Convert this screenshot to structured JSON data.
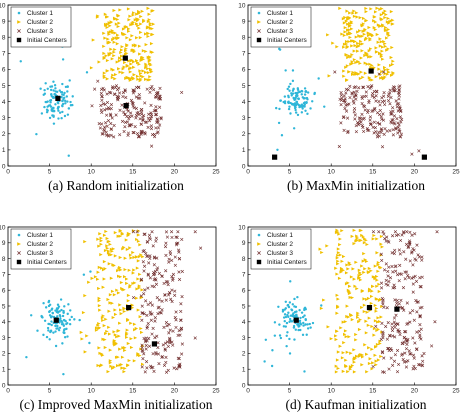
{
  "colors": {
    "cluster1": "#2fb6d8",
    "cluster2": "#f0c000",
    "cluster3": "#6e2a2a",
    "center": "#000000"
  },
  "shared": {
    "xlim": [
      0,
      25
    ],
    "ylim": [
      0,
      10
    ],
    "xticks": [
      "0",
      "5",
      "10",
      "15",
      "20",
      "25"
    ],
    "yticks": [
      "0",
      "1",
      "2",
      "3",
      "4",
      "5",
      "6",
      "7",
      "8",
      "9",
      "10"
    ],
    "legend": [
      "Cluster 1",
      "Cluster 2",
      "Cluster 3",
      "Initial Centers"
    ],
    "legend_position": "top-left",
    "grid": false
  },
  "chart_data": [
    {
      "type": "scatter",
      "caption": "(a) Random initialization",
      "series": [
        {
          "name": "Cluster 1",
          "marker": "dot",
          "center": [
            5.8,
            4.1
          ],
          "spread": [
            1.3,
            0.8
          ],
          "count": 110
        },
        {
          "name": "Cluster 2",
          "marker": "triangle",
          "region": [
            11.5,
            17.5,
            5.3,
            9.8
          ],
          "count": 230
        },
        {
          "name": "Cluster 3",
          "marker": "x",
          "region": [
            11.0,
            18.5,
            1.8,
            5.0
          ],
          "count": 200
        },
        {
          "name": "Initial Centers",
          "marker": "square",
          "points": [
            [
              6.0,
              4.2
            ],
            [
              14.1,
              6.7
            ],
            [
              14.2,
              3.75
            ]
          ]
        }
      ]
    },
    {
      "type": "scatter",
      "caption": "(b) MaxMin initialization",
      "series": [
        {
          "name": "Cluster 1",
          "marker": "dot",
          "center": [
            5.8,
            4.1
          ],
          "spread": [
            1.3,
            0.8
          ],
          "count": 110
        },
        {
          "name": "Cluster 2",
          "marker": "triangle",
          "region": [
            11.5,
            17.5,
            5.3,
            9.8
          ],
          "count": 230
        },
        {
          "name": "Cluster 3",
          "marker": "x",
          "region": [
            11.0,
            18.5,
            1.8,
            5.0
          ],
          "count": 200
        },
        {
          "name": "Initial Centers",
          "marker": "square",
          "points": [
            [
              3.2,
              0.55
            ],
            [
              14.8,
              5.9
            ],
            [
              21.2,
              0.55
            ]
          ]
        }
      ]
    },
    {
      "type": "scatter",
      "caption": "(c) Improved MaxMin initialization",
      "series": [
        {
          "name": "Cluster 1",
          "marker": "dot",
          "center": [
            5.8,
            4.1
          ],
          "spread": [
            1.3,
            0.8
          ],
          "count": 110
        },
        {
          "name": "Cluster 2",
          "marker": "triangle",
          "region": [
            10.5,
            16.2,
            0.8,
            9.8
          ],
          "count": 230
        },
        {
          "name": "Cluster 3",
          "marker": "x",
          "region": [
            16.0,
            21.0,
            0.8,
            9.8
          ],
          "count": 220
        },
        {
          "name": "Initial Centers",
          "marker": "square",
          "points": [
            [
              5.8,
              4.1
            ],
            [
              14.5,
              4.9
            ],
            [
              17.6,
              2.6
            ]
          ]
        }
      ]
    },
    {
      "type": "scatter",
      "caption": "(d) Kaufman initialization",
      "series": [
        {
          "name": "Cluster 1",
          "marker": "dot",
          "center": [
            5.8,
            4.1
          ],
          "spread": [
            1.3,
            0.8
          ],
          "count": 110
        },
        {
          "name": "Cluster 2",
          "marker": "triangle",
          "region": [
            10.5,
            16.2,
            0.8,
            9.8
          ],
          "count": 230
        },
        {
          "name": "Cluster 3",
          "marker": "x",
          "region": [
            16.0,
            21.0,
            0.8,
            9.8
          ],
          "count": 220
        },
        {
          "name": "Initial Centers",
          "marker": "square",
          "points": [
            [
              5.8,
              4.1
            ],
            [
              14.6,
              4.9
            ],
            [
              17.9,
              4.8
            ]
          ]
        }
      ]
    }
  ]
}
